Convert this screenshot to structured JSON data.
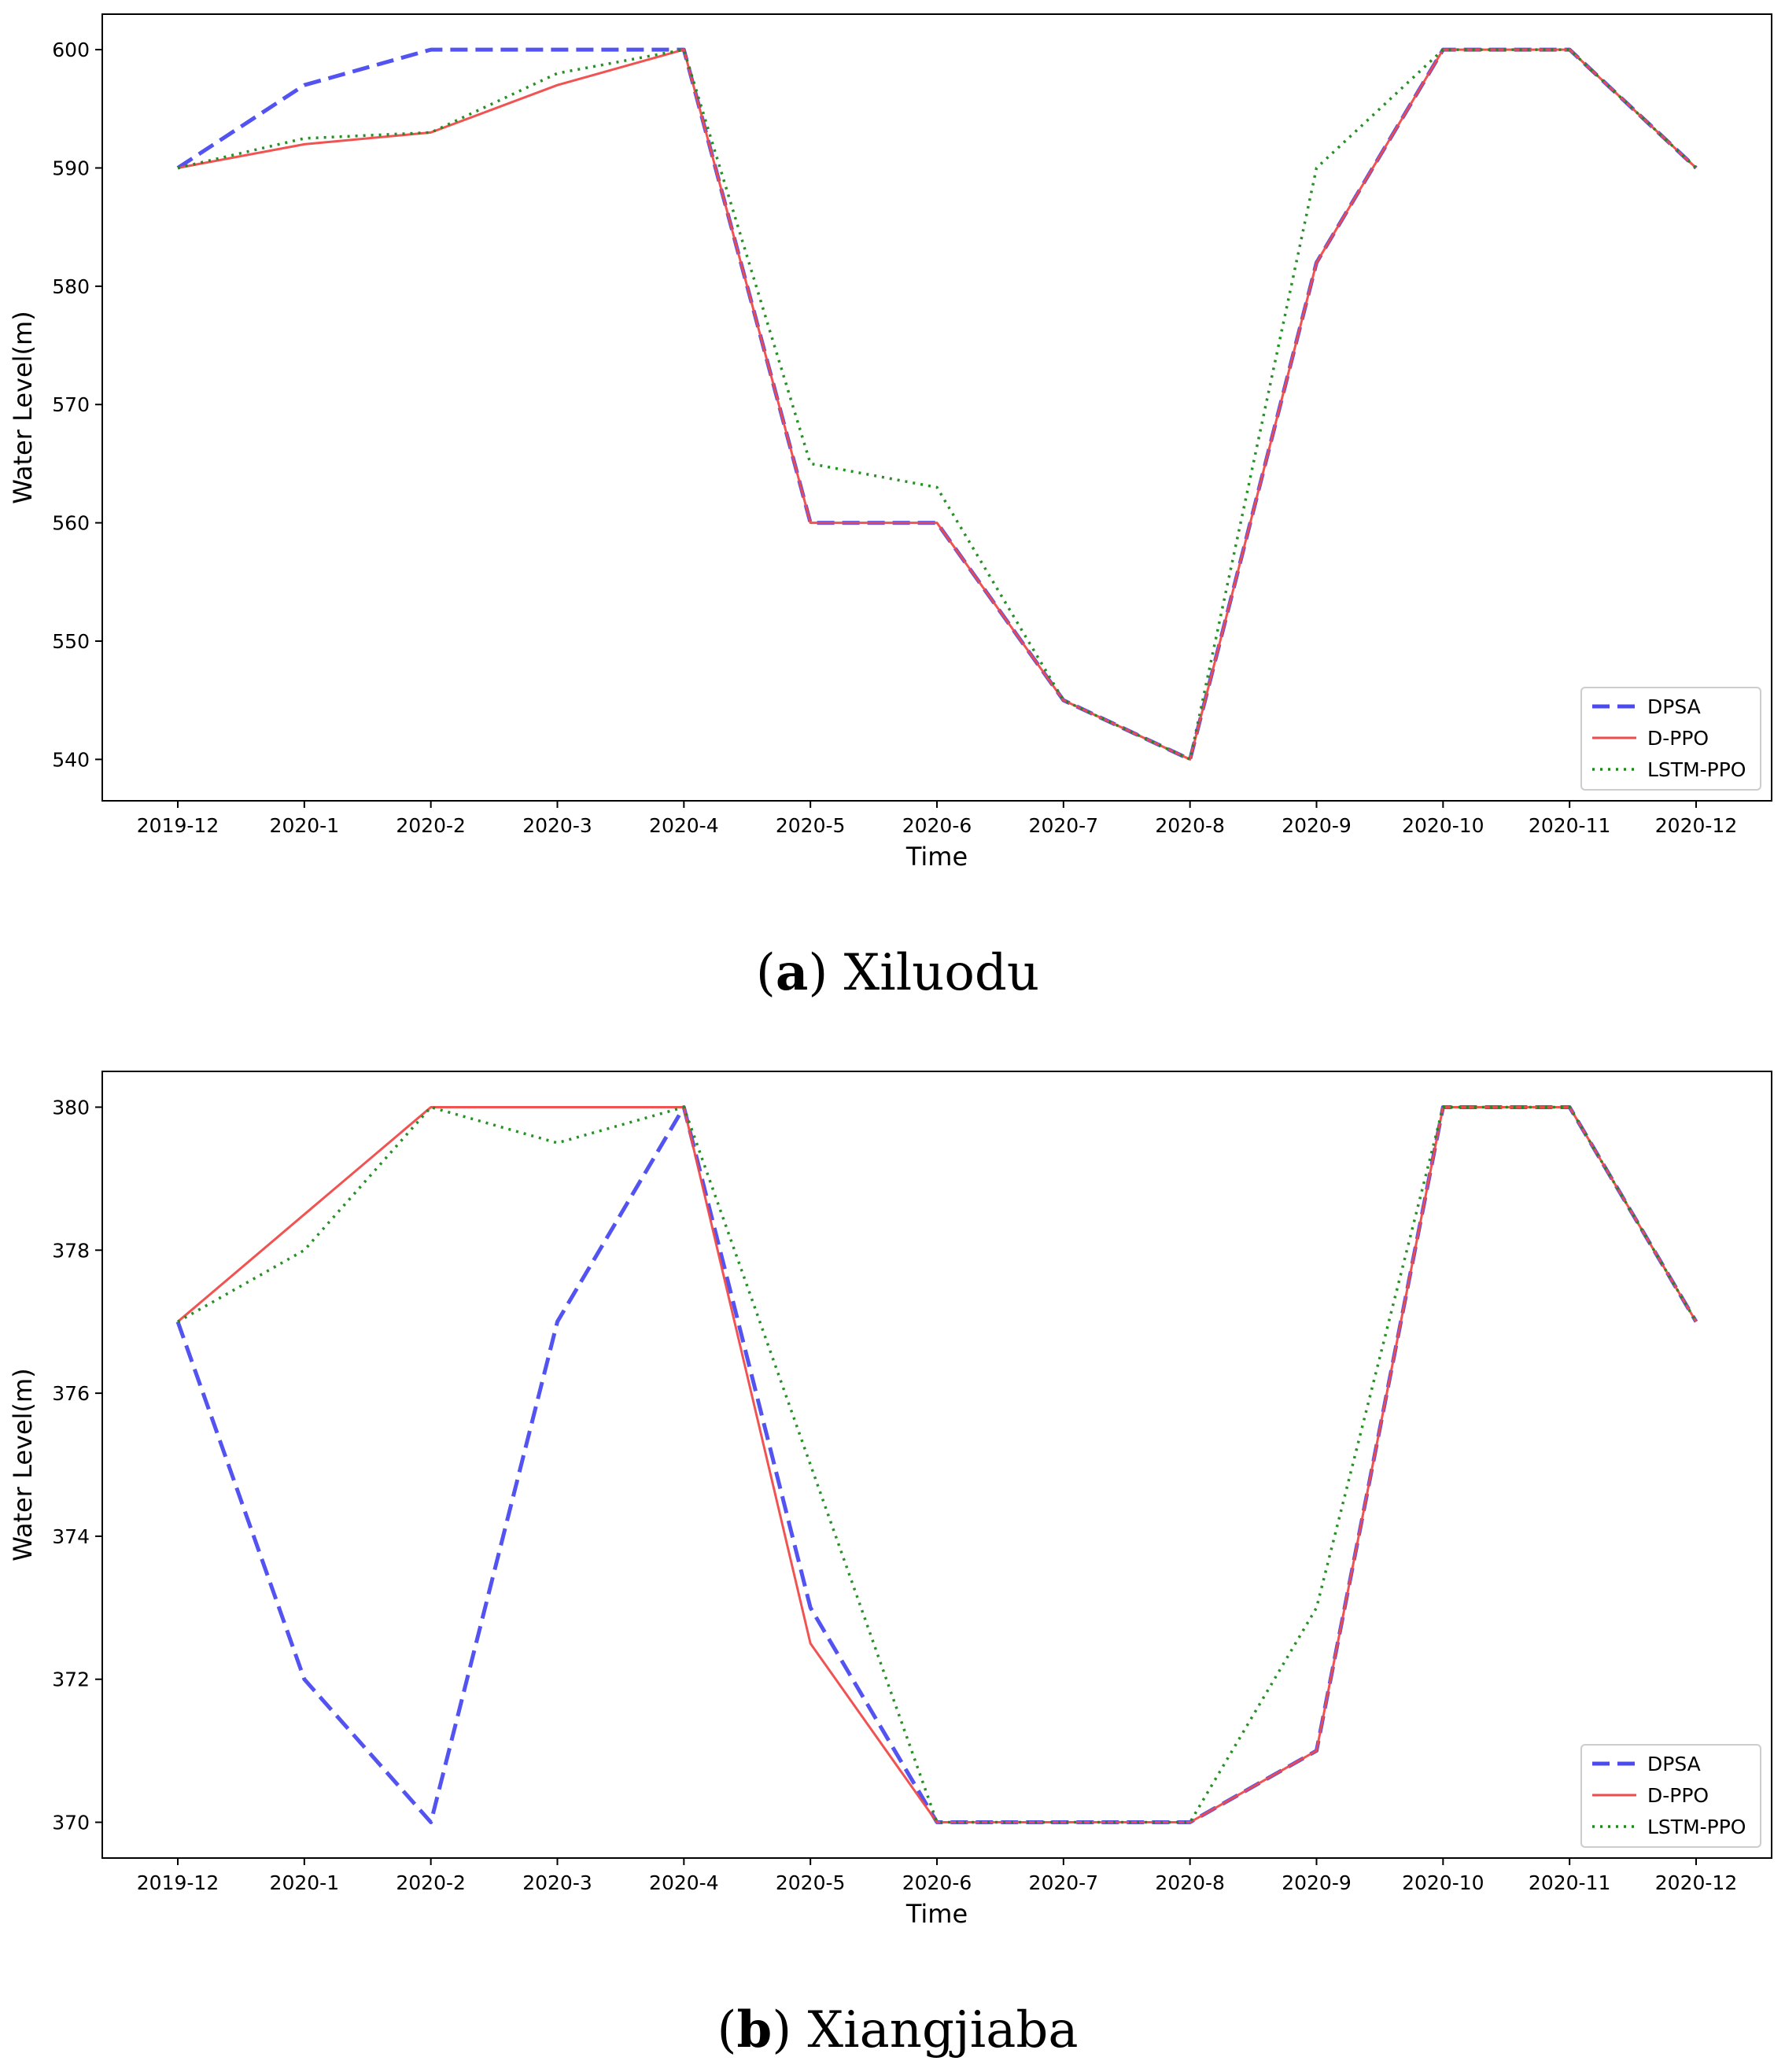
{
  "chart_data": [
    {
      "type": "line",
      "caption_letter": "a",
      "caption_name": "Xiluodu",
      "xlabel": "Time",
      "ylabel": "Water Level(m)",
      "categories": [
        "2019-12",
        "2020-1",
        "2020-2",
        "2020-3",
        "2020-4",
        "2020-5",
        "2020-6",
        "2020-7",
        "2020-8",
        "2020-9",
        "2020-10",
        "2020-11",
        "2020-12"
      ],
      "ylim": [
        536.5,
        603
      ],
      "yticks": [
        540,
        550,
        560,
        570,
        580,
        590,
        600
      ],
      "grid": false,
      "legend_position": "bottom-right",
      "series": [
        {
          "name": "DPSA",
          "style": "dashed",
          "color": "#4a4af0",
          "values": [
            590,
            597,
            600,
            600,
            600,
            560,
            560,
            545,
            540,
            582,
            600,
            600,
            590
          ]
        },
        {
          "name": "D-PPO",
          "style": "solid",
          "color": "#f04a4a",
          "values": [
            590,
            592,
            593,
            597,
            600,
            560,
            560,
            545,
            540,
            582,
            600,
            600,
            590
          ]
        },
        {
          "name": "LSTM-PPO",
          "style": "dotted",
          "color": "#1a8a1a",
          "values": [
            590,
            592.5,
            593,
            598,
            600,
            565,
            563,
            545,
            540,
            590,
            600,
            600,
            590
          ]
        }
      ]
    },
    {
      "type": "line",
      "caption_letter": "b",
      "caption_name": "Xiangjiaba",
      "xlabel": "Time",
      "ylabel": "Water Level(m)",
      "categories": [
        "2019-12",
        "2020-1",
        "2020-2",
        "2020-3",
        "2020-4",
        "2020-5",
        "2020-6",
        "2020-7",
        "2020-8",
        "2020-9",
        "2020-10",
        "2020-11",
        "2020-12"
      ],
      "ylim": [
        369.5,
        380.5
      ],
      "yticks": [
        370,
        372,
        374,
        376,
        378,
        380
      ],
      "grid": false,
      "legend_position": "bottom-right",
      "series": [
        {
          "name": "DPSA",
          "style": "dashed",
          "color": "#4a4af0",
          "values": [
            377,
            372,
            370,
            377,
            380,
            373,
            370,
            370,
            370,
            371,
            380,
            380,
            377
          ]
        },
        {
          "name": "D-PPO",
          "style": "solid",
          "color": "#f04a4a",
          "values": [
            377,
            378.5,
            380,
            380,
            380,
            372.5,
            370,
            370,
            370,
            371,
            380,
            380,
            377
          ]
        },
        {
          "name": "LSTM-PPO",
          "style": "dotted",
          "color": "#1a8a1a",
          "values": [
            377,
            378,
            380,
            379.5,
            380,
            375,
            370,
            370,
            370,
            373,
            380,
            380,
            377
          ]
        }
      ]
    }
  ]
}
